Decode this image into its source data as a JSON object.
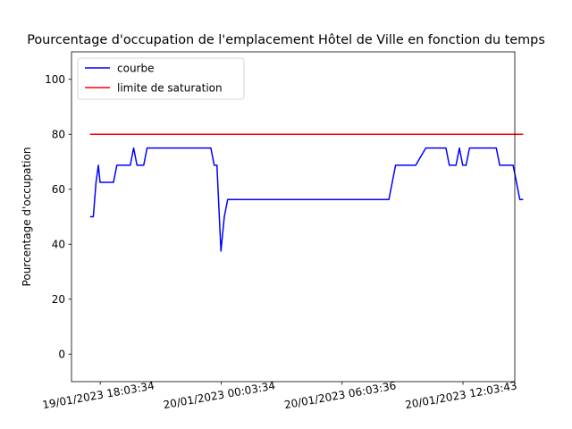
{
  "chart_data": {
    "type": "line",
    "title": "Pourcentage d'occupation de l'emplacement Hôtel de Ville en fonction du temps",
    "xlabel": "",
    "ylabel": "Pourcentage d'occupation",
    "ylim": [
      -10,
      110
    ],
    "xlim": [
      "19/01/2023 16:38:00",
      "20/01/2023 14:38:00"
    ],
    "yticks": [
      0,
      20,
      40,
      60,
      80,
      100
    ],
    "yticklabels": [
      "0",
      "20",
      "40",
      "60",
      "80",
      "100"
    ],
    "xticks": [
      "19/01/2023 18:03:34",
      "20/01/2023 00:03:34",
      "20/01/2023 06:03:36",
      "20/01/2023 12:03:43"
    ],
    "xticklabels": [
      "19/01/2023 18:03:34",
      "20/01/2023 00:03:34",
      "20/01/2023 06:03:36",
      "20/01/2023 12:03:43"
    ],
    "grid": false,
    "legend": {
      "position": "top-left"
    },
    "series": [
      {
        "name": "courbe",
        "color": "#0000ff",
        "x": [
          "19/01/2023 17:33:00",
          "19/01/2023 17:43:00",
          "19/01/2023 17:51:00",
          "19/01/2023 17:58:00",
          "19/01/2023 18:03:00",
          "19/01/2023 18:13:00",
          "19/01/2023 18:43:00",
          "19/01/2023 18:53:00",
          "19/01/2023 19:33:00",
          "19/01/2023 19:43:00",
          "19/01/2023 19:53:00",
          "19/01/2023 20:13:00",
          "19/01/2023 20:23:00",
          "19/01/2023 23:23:00",
          "19/01/2023 23:33:00",
          "19/01/2023 23:43:00",
          "19/01/2023 23:51:00",
          "20/01/2023 00:03:00",
          "20/01/2023 00:13:00",
          "20/01/2023 00:23:00",
          "20/01/2023 08:23:00",
          "20/01/2023 08:43:00",
          "20/01/2023 09:43:00",
          "20/01/2023 10:13:00",
          "20/01/2023 11:13:00",
          "20/01/2023 11:23:00",
          "20/01/2023 11:43:00",
          "20/01/2023 11:53:00",
          "20/01/2023 12:03:00",
          "20/01/2023 12:13:00",
          "20/01/2023 12:23:00",
          "20/01/2023 12:43:00",
          "20/01/2023 13:43:00",
          "20/01/2023 13:53:00",
          "20/01/2023 14:33:00",
          "20/01/2023 14:53:00",
          "20/01/2023 15:03:00"
        ],
        "y": [
          50,
          50,
          62.5,
          68.75,
          62.5,
          62.5,
          62.5,
          68.75,
          68.75,
          75,
          68.75,
          68.75,
          75,
          75,
          75,
          68.75,
          68.75,
          37.5,
          50,
          56.25,
          56.25,
          68.75,
          68.75,
          75,
          75,
          68.75,
          68.75,
          75,
          68.75,
          68.75,
          75,
          75,
          75,
          68.75,
          68.75,
          56.25,
          56.25
        ]
      },
      {
        "name": "limite de saturation",
        "color": "#ff0000",
        "x": [
          "19/01/2023 17:33:00",
          "20/01/2023 15:03:00"
        ],
        "y": [
          80,
          80
        ]
      }
    ]
  }
}
